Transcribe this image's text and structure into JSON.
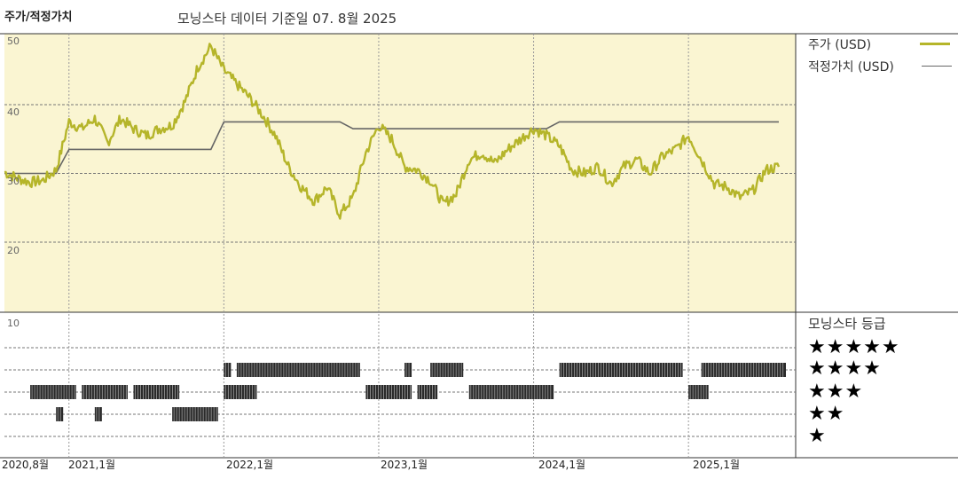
{
  "header": {
    "title": "주가/적정가치",
    "subtitle": "모닝스타 데이터 기준일 07. 8월 2025"
  },
  "legend": {
    "price_label": "주가 (USD)",
    "fair_label": "적정가치 (USD)",
    "price_color": "#b5b52a",
    "fair_color": "#666666"
  },
  "rating": {
    "title": "모닝스타 등급",
    "star_rows": [
      "★★★★★",
      "★★★★",
      "★★★",
      "★★",
      "★"
    ]
  },
  "chart_data": {
    "type": "line",
    "title": "주가/적정가치",
    "x_tick_labels": [
      "2020,8월",
      "2021,1월",
      "2022,1월",
      "2023,1월",
      "2024,1월",
      "2025,1월"
    ],
    "y_ticks": [
      "50",
      "40",
      "30",
      "20",
      "10"
    ],
    "ylim": [
      10,
      50
    ],
    "x_range": [
      "2020-08",
      "2025-08"
    ],
    "grid": true,
    "series": [
      {
        "name": "주가 (USD)",
        "color": "#b5b52a",
        "points": [
          [
            "2020-08",
            30.2
          ],
          [
            "2020-09",
            29.3
          ],
          [
            "2020-10",
            28.7
          ],
          [
            "2020-11",
            29.0
          ],
          [
            "2020-12",
            30.5
          ],
          [
            "2021-01",
            37.5
          ],
          [
            "2021-02",
            36.5
          ],
          [
            "2021-03",
            38.0
          ],
          [
            "2021-04",
            34.5
          ],
          [
            "2021-05",
            38.0
          ],
          [
            "2021-06",
            36.5
          ],
          [
            "2021-07",
            35.5
          ],
          [
            "2021-08",
            36.5
          ],
          [
            "2021-09",
            37.0
          ],
          [
            "2021-10",
            40.5
          ],
          [
            "2021-11",
            45.5
          ],
          [
            "2021-12",
            48.5
          ],
          [
            "2022-01",
            45.0
          ],
          [
            "2022-02",
            43.0
          ],
          [
            "2022-03",
            41.0
          ],
          [
            "2022-04",
            38.5
          ],
          [
            "2022-05",
            35.5
          ],
          [
            "2022-06",
            31.0
          ],
          [
            "2022-07",
            28.0
          ],
          [
            "2022-08",
            26.0
          ],
          [
            "2022-09",
            28.0
          ],
          [
            "2022-10",
            24.0
          ],
          [
            "2022-11",
            26.5
          ],
          [
            "2022-12",
            33.0
          ],
          [
            "2023-01",
            37.0
          ],
          [
            "2023-02",
            35.0
          ],
          [
            "2023-03",
            31.0
          ],
          [
            "2023-04",
            30.5
          ],
          [
            "2023-05",
            29.0
          ],
          [
            "2023-06",
            25.5
          ],
          [
            "2023-07",
            27.0
          ],
          [
            "2023-08",
            32.0
          ],
          [
            "2023-09",
            33.0
          ],
          [
            "2023-10",
            31.5
          ],
          [
            "2023-11",
            33.5
          ],
          [
            "2023-12",
            35.0
          ],
          [
            "2024-01",
            36.5
          ],
          [
            "2024-02",
            35.5
          ],
          [
            "2024-03",
            34.0
          ],
          [
            "2024-04",
            30.5
          ],
          [
            "2024-05",
            30.0
          ],
          [
            "2024-06",
            31.0
          ],
          [
            "2024-07",
            28.5
          ],
          [
            "2024-08",
            31.0
          ],
          [
            "2024-09",
            32.0
          ],
          [
            "2024-10",
            30.0
          ],
          [
            "2024-11",
            32.5
          ],
          [
            "2024-12",
            33.5
          ],
          [
            "2025-01",
            35.5
          ],
          [
            "2025-02",
            32.0
          ],
          [
            "2025-03",
            28.5
          ],
          [
            "2025-04",
            28.0
          ],
          [
            "2025-05",
            26.5
          ],
          [
            "2025-06",
            27.5
          ],
          [
            "2025-07",
            30.5
          ],
          [
            "2025-08",
            31.0
          ]
        ]
      },
      {
        "name": "적정가치 (USD)",
        "color": "#666666",
        "points": [
          [
            "2020-08",
            30.0
          ],
          [
            "2020-12",
            30.0
          ],
          [
            "2021-01",
            33.5
          ],
          [
            "2021-12",
            33.5
          ],
          [
            "2022-01",
            37.5
          ],
          [
            "2022-10",
            37.5
          ],
          [
            "2022-11",
            36.5
          ],
          [
            "2024-02",
            36.5
          ],
          [
            "2024-03",
            37.5
          ],
          [
            "2025-08",
            37.5
          ]
        ]
      }
    ],
    "rating_bars": [
      {
        "stars": 4,
        "from": "2022-01",
        "to": "2022-01"
      },
      {
        "stars": 4,
        "from": "2022-02",
        "to": "2022-11"
      },
      {
        "stars": 4,
        "from": "2023-03",
        "to": "2023-03"
      },
      {
        "stars": 4,
        "from": "2023-05",
        "to": "2023-07"
      },
      {
        "stars": 4,
        "from": "2024-03",
        "to": "2024-12"
      },
      {
        "stars": 4,
        "from": "2025-02",
        "to": "2025-08"
      },
      {
        "stars": 3,
        "from": "2020-10",
        "to": "2021-01"
      },
      {
        "stars": 3,
        "from": "2021-02",
        "to": "2021-05"
      },
      {
        "stars": 3,
        "from": "2021-06",
        "to": "2021-09"
      },
      {
        "stars": 3,
        "from": "2022-01",
        "to": "2022-03"
      },
      {
        "stars": 3,
        "from": "2022-12",
        "to": "2023-03"
      },
      {
        "stars": 3,
        "from": "2023-04",
        "to": "2023-05"
      },
      {
        "stars": 3,
        "from": "2023-08",
        "to": "2024-02"
      },
      {
        "stars": 3,
        "from": "2025-01",
        "to": "2025-02"
      },
      {
        "stars": 2,
        "from": "2020-12",
        "to": "2020-12"
      },
      {
        "stars": 2,
        "from": "2021-03",
        "to": "2021-03"
      },
      {
        "stars": 2,
        "from": "2021-09",
        "to": "2021-12"
      }
    ]
  }
}
